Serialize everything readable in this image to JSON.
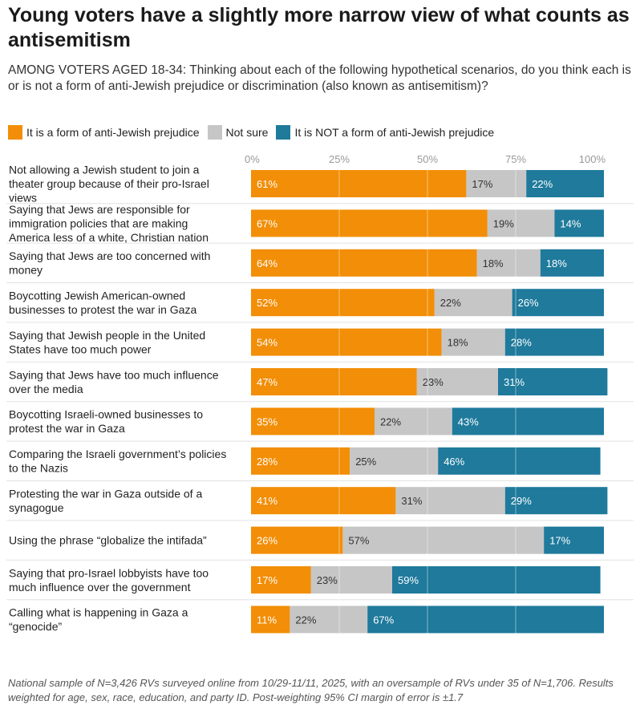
{
  "title": "Young voters have a slightly more narrow view of what counts as antisemitism",
  "subtitle": "AMONG VOTERS AGED 18-34: Thinking about each of the following hypothetical scenarios, do you think each is or is not a form of anti-Jewish prejudice or discrimination (also known as antisemitism)?",
  "legend": [
    {
      "label": "It is a form of anti-Jewish prejudice",
      "color": "#F28E07"
    },
    {
      "label": "Not sure",
      "color": "#C6C6C6"
    },
    {
      "label": "It is NOT a form of anti-Jewish prejudice",
      "color": "#1F7A9C"
    }
  ],
  "footnote": "National sample of N=3,426 RVs surveyed online from 10/29-11/11, 2025, with an oversample of RVs under 35 of N=1,706. Results weighted for age, sex, race, education, and party ID. Post-weighting 95% CI margin of error is ±1.7",
  "chart_data": {
    "type": "bar",
    "orientation": "horizontal",
    "stacked": true,
    "xlim": [
      0,
      100
    ],
    "x_ticks": [
      "0%",
      "25%",
      "50%",
      "75%",
      "100%"
    ],
    "grid": true,
    "legend_position": "top",
    "categories": [
      "Not allowing a Jewish student to join a theater group because of their pro-Israel views",
      "Saying that Jews are responsible for immigration policies that are making America less of a white, Christian nation",
      "Saying that Jews are too concerned with money",
      "Boycotting Jewish American-owned businesses to protest the war in Gaza",
      "Saying that Jewish people in the United States have too much power",
      "Saying that Jews have too much influence over the media",
      "Boycotting Israeli-owned businesses to protest the war in Gaza",
      "Comparing the Israeli government’s policies to the Nazis",
      "Protesting the war in Gaza outside of a synagogue",
      "Using the phrase “globalize the intifada”",
      "Saying that pro-Israel lobbyists have too much influence over the government",
      "Calling what is happening in Gaza a “genocide”"
    ],
    "category_lines": [
      [
        "Not allowing a Jewish student to join a",
        "theater group because of their pro-Israel",
        "views"
      ],
      [
        "Saying that Jews are responsible for",
        "immigration policies that are making",
        "America less of a white, Christian nation"
      ],
      [
        "Saying that Jews are too concerned with",
        "money"
      ],
      [
        "Boycotting Jewish American-owned",
        "businesses to protest the war in Gaza"
      ],
      [
        "Saying that Jewish people in the United",
        "States have too much power"
      ],
      [
        "Saying that Jews have too much influence",
        "over the media"
      ],
      [
        "Boycotting Israeli-owned businesses to",
        "protest the war in Gaza"
      ],
      [
        "Comparing the Israeli government’s policies",
        "to the Nazis"
      ],
      [
        "Protesting the war in Gaza outside of a",
        "synagogue"
      ],
      [
        "Using the phrase “globalize the intifada”"
      ],
      [
        "Saying that pro-Israel lobbyists have too",
        "much influence over the government"
      ],
      [
        "Calling what is happening in Gaza a",
        "“genocide”"
      ]
    ],
    "series": [
      {
        "name": "It is a form of anti-Jewish prejudice",
        "color": "#F28E07",
        "values": [
          61,
          67,
          64,
          52,
          54,
          47,
          35,
          28,
          41,
          26,
          17,
          11
        ]
      },
      {
        "name": "Not sure",
        "color": "#C6C6C6",
        "values": [
          17,
          19,
          18,
          22,
          18,
          23,
          22,
          25,
          31,
          57,
          23,
          22
        ]
      },
      {
        "name": "It is NOT a form of anti-Jewish prejudice",
        "color": "#1F7A9C",
        "values": [
          22,
          14,
          18,
          26,
          28,
          31,
          43,
          46,
          29,
          17,
          59,
          67
        ]
      }
    ]
  }
}
